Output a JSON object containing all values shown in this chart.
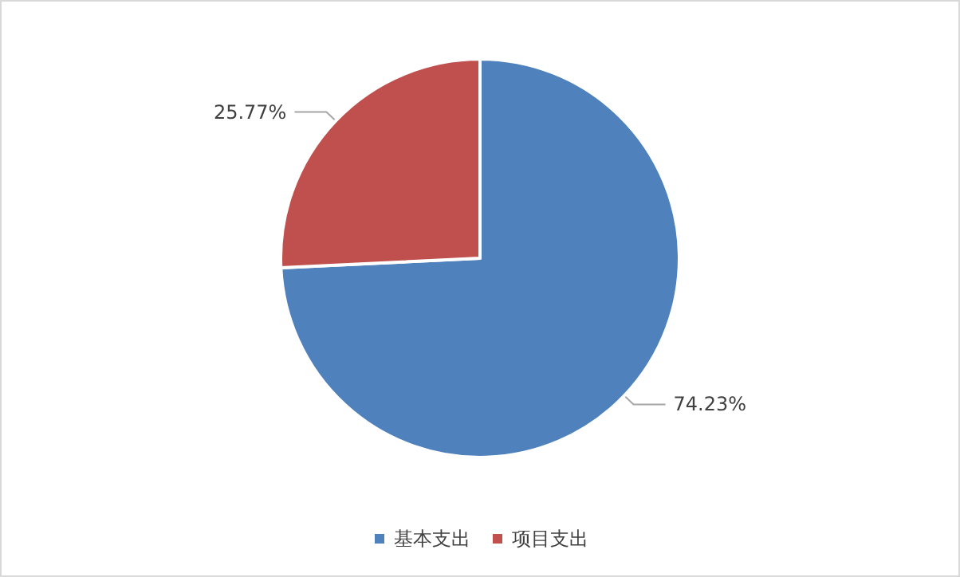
{
  "chart_data": {
    "type": "pie",
    "categories": [
      "基本支出",
      "项目支出"
    ],
    "values": [
      74.23,
      25.77
    ],
    "colors": [
      "#4f81bd",
      "#c0504d"
    ],
    "value_labels": [
      "74.23%",
      "25.77%"
    ],
    "legend": "bottom"
  }
}
